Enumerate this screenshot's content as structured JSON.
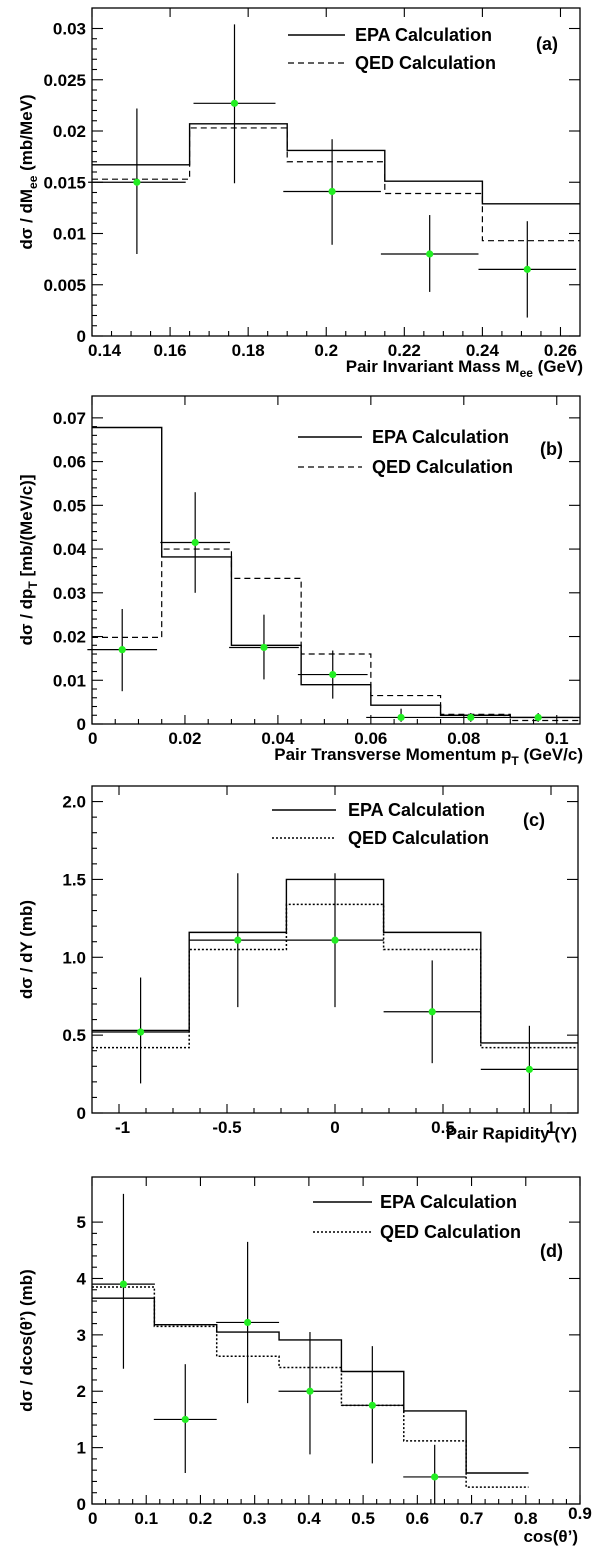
{
  "chart_data": [
    {
      "type": "step",
      "panel_label": "(a)",
      "xlabel": "Pair Invariant Mass M",
      "xlabel_sub": "ee",
      "xlabel_unit": " (GeV)",
      "ylabel": "dσ / dM",
      "ylabel_sub": "ee",
      "ylabel_unit": " (mb/MeV)",
      "xlim": [
        0.14,
        0.265
      ],
      "ylim": [
        0,
        0.032
      ],
      "xticks": [
        0.14,
        0.16,
        0.18,
        0.2,
        0.22,
        0.24,
        0.26
      ],
      "xtick_labels": [
        "0.14",
        "0.16",
        "0.18",
        "0.2",
        "0.22",
        "0.24",
        "0.26"
      ],
      "yticks": [
        0,
        0.005,
        0.01,
        0.015,
        0.02,
        0.025,
        0.03
      ],
      "ytick_labels": [
        "0",
        "0.005",
        "0.01",
        "0.015",
        "0.02",
        "0.025",
        "0.03"
      ],
      "legend_position": "top-right",
      "bin_edges": [
        0.14,
        0.165,
        0.19,
        0.215,
        0.24,
        0.265
      ],
      "series": [
        {
          "name": "EPA Calculation",
          "style": "solid",
          "values": [
            0.0167,
            0.0207,
            0.0181,
            0.0151,
            0.0129
          ]
        },
        {
          "name": "QED Calculation",
          "style": "dashed",
          "values": [
            0.0153,
            0.0203,
            0.017,
            0.0139,
            0.0093
          ]
        }
      ],
      "points": {
        "x": [
          0.1515,
          0.1765,
          0.2015,
          0.2265,
          0.2515
        ],
        "y": [
          0.015,
          0.0227,
          0.0141,
          0.008,
          0.0065
        ],
        "xerr": [
          0.0125,
          0.0105,
          0.0125,
          0.0125,
          0.0125
        ],
        "yerr_up": [
          0.0072,
          0.0077,
          0.0051,
          0.0038,
          0.0047
        ],
        "yerr_down": [
          0.007,
          0.0078,
          0.0052,
          0.0037,
          0.0047
        ]
      }
    },
    {
      "type": "step",
      "panel_label": "(b)",
      "xlabel": "Pair Transverse Momentum p",
      "xlabel_sub": "T",
      "xlabel_unit": " (GeV/c)",
      "ylabel": "dσ / dp",
      "ylabel_sub": "T",
      "ylabel_unit": " [mb/(MeV/c)]",
      "xlim": [
        0,
        0.105
      ],
      "ylim": [
        0,
        0.075
      ],
      "xticks": [
        0,
        0.02,
        0.04,
        0.06,
        0.08,
        0.1
      ],
      "xtick_labels": [
        "0",
        "0.02",
        "0.04",
        "0.06",
        "0.08",
        "0.1"
      ],
      "yticks": [
        0,
        0.01,
        0.02,
        0.03,
        0.04,
        0.05,
        0.06,
        0.07
      ],
      "ytick_labels": [
        "0",
        "0.01",
        "0.02",
        "0.03",
        "0.04",
        "0.05",
        "0.06",
        "0.07"
      ],
      "legend_position": "top-right",
      "bin_edges": [
        0,
        0.015,
        0.03,
        0.045,
        0.06,
        0.075,
        0.09,
        0.105
      ],
      "series": [
        {
          "name": "EPA Calculation",
          "style": "solid",
          "values": [
            0.0678,
            0.0382,
            0.018,
            0.009,
            0.0043,
            0.002,
            0.0015
          ]
        },
        {
          "name": "QED Calculation",
          "style": "dashed",
          "values": [
            0.0198,
            0.04,
            0.0333,
            0.016,
            0.0065,
            0.0022,
            0.0008
          ]
        }
      ],
      "points": {
        "x": [
          0.0065,
          0.0222,
          0.037,
          0.0518,
          0.0665,
          0.0815,
          0.096
        ],
        "y": [
          0.017,
          0.0415,
          0.0175,
          0.0113,
          0.0015,
          0.0015,
          0.0015
        ],
        "xerr": [
          0.0075,
          0.0075,
          0.0075,
          0.0075,
          0.0075,
          0.0075,
          0.0075
        ],
        "yerr_up": [
          0.0093,
          0.0115,
          0.0075,
          0.0055,
          0.002,
          0.001,
          0.001
        ],
        "yerr_down": [
          0.0095,
          0.0115,
          0.0073,
          0.0055,
          0.001,
          0.001,
          0.001
        ]
      }
    },
    {
      "type": "step",
      "panel_label": "(c)",
      "xlabel": "Pair Rapidity (Y)",
      "xlabel_sub": "",
      "xlabel_unit": "",
      "ylabel": "dσ / dY (mb)",
      "ylabel_sub": "",
      "ylabel_unit": "",
      "xlim": [
        -1.125,
        1.125
      ],
      "ylim": [
        0,
        2.1
      ],
      "xticks": [
        -1,
        -0.5,
        0,
        0.5,
        1
      ],
      "xtick_labels": [
        "-1",
        "-0.5",
        "0",
        "0.5",
        "1"
      ],
      "yticks": [
        0,
        0.5,
        1.0,
        1.5,
        2.0
      ],
      "ytick_labels": [
        "0",
        "0.5",
        "1.0",
        "1.5",
        "2.0"
      ],
      "legend_position": "top-right",
      "bin_edges": [
        -1.125,
        -0.675,
        -0.225,
        0.225,
        0.675,
        1.125
      ],
      "series": [
        {
          "name": "EPA Calculation",
          "style": "solid",
          "values": [
            0.53,
            1.16,
            1.5,
            1.16,
            0.45
          ]
        },
        {
          "name": "QED Calculation",
          "style": "dotted",
          "values": [
            0.42,
            1.05,
            1.34,
            1.05,
            0.42
          ]
        }
      ],
      "points": {
        "x": [
          -0.9,
          -0.45,
          0.0,
          0.45,
          0.9
        ],
        "y": [
          0.52,
          1.11,
          1.11,
          0.65,
          0.28
        ],
        "xerr": [
          0.225,
          0.225,
          0.225,
          0.225,
          0.225
        ],
        "yerr_up": [
          0.35,
          0.43,
          0.43,
          0.33,
          0.28
        ],
        "yerr_down": [
          0.33,
          0.43,
          0.43,
          0.33,
          0.28
        ]
      }
    },
    {
      "type": "step",
      "panel_label": "(d)",
      "xlabel": "cos(θ’)",
      "xlabel_sub": "",
      "xlabel_unit": "",
      "ylabel": "dσ / dcos(θ’)  (mb)",
      "ylabel_sub": "",
      "ylabel_unit": "",
      "xlim": [
        0,
        0.9
      ],
      "ylim": [
        0,
        5.8
      ],
      "xticks": [
        0,
        0.1,
        0.2,
        0.3,
        0.4,
        0.5,
        0.6,
        0.7,
        0.8,
        0.9
      ],
      "xtick_labels": [
        "0",
        "0.1",
        "0.2",
        "0.3",
        "0.4",
        "0.5",
        "0.6",
        "0.7",
        "0.8",
        "0.9"
      ],
      "yticks": [
        0,
        1,
        2,
        3,
        4,
        5
      ],
      "ytick_labels": [
        "0",
        "1",
        "2",
        "3",
        "4",
        "5"
      ],
      "legend_position": "top-right",
      "bin_edges": [
        0,
        0.115,
        0.23,
        0.345,
        0.46,
        0.575,
        0.69,
        0.805
      ],
      "series": [
        {
          "name": "EPA Calculation",
          "style": "solid",
          "values": [
            3.65,
            3.18,
            3.05,
            2.91,
            2.35,
            1.65,
            0.55
          ]
        },
        {
          "name": "QED Calculation",
          "style": "dotted",
          "values": [
            3.85,
            3.15,
            2.62,
            2.42,
            1.75,
            1.12,
            0.3
          ]
        }
      ],
      "points": {
        "x": [
          0.058,
          0.172,
          0.287,
          0.402,
          0.517,
          0.632
        ],
        "y": [
          3.9,
          1.5,
          3.22,
          2.0,
          1.75,
          0.48
        ],
        "xerr": [
          0.058,
          0.058,
          0.058,
          0.058,
          0.058,
          0.058
        ],
        "yerr_up": [
          1.6,
          0.98,
          1.43,
          1.05,
          1.05,
          0.57
        ],
        "yerr_down": [
          1.5,
          0.95,
          1.43,
          1.12,
          1.03,
          0.48
        ]
      }
    }
  ],
  "colors": {
    "data_point": "#22ee22",
    "line": "#000000"
  }
}
